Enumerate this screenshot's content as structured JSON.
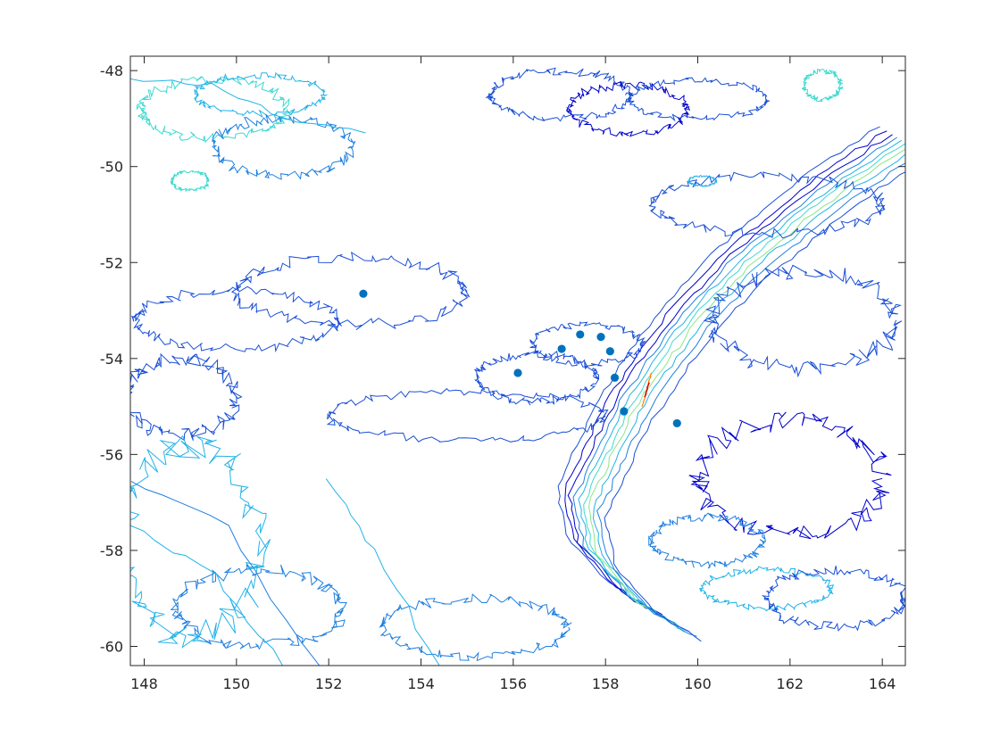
{
  "chart_data": {
    "type": "scatter",
    "title": "",
    "xlabel": "",
    "ylabel": "",
    "xlim": [
      147.7,
      164.5
    ],
    "ylim": [
      -60.4,
      -47.7
    ],
    "xticks": [
      148,
      150,
      152,
      154,
      156,
      158,
      160,
      162,
      164
    ],
    "yticks": [
      -48,
      -50,
      -52,
      -54,
      -56,
      -58,
      -60
    ],
    "grid": false,
    "legend": "none",
    "series": [
      {
        "marker_color": "#0072BD",
        "points": [
          {
            "x": 152.75,
            "y": -52.65
          },
          {
            "x": 156.1,
            "y": -54.3
          },
          {
            "x": 157.05,
            "y": -53.8
          },
          {
            "x": 157.45,
            "y": -53.5
          },
          {
            "x": 157.9,
            "y": -53.55
          },
          {
            "x": 158.1,
            "y": -53.85
          },
          {
            "x": 158.2,
            "y": -54.4
          },
          {
            "x": 158.4,
            "y": -55.1
          },
          {
            "x": 159.55,
            "y": -55.35
          }
        ]
      }
    ],
    "contour_colors": [
      "#0000cc",
      "#1a4fd6",
      "#1f7fe0",
      "#22b3e8",
      "#3fd9d0",
      "#8ae68a",
      "#e3e020",
      "#ff8000",
      "#d40000"
    ]
  }
}
